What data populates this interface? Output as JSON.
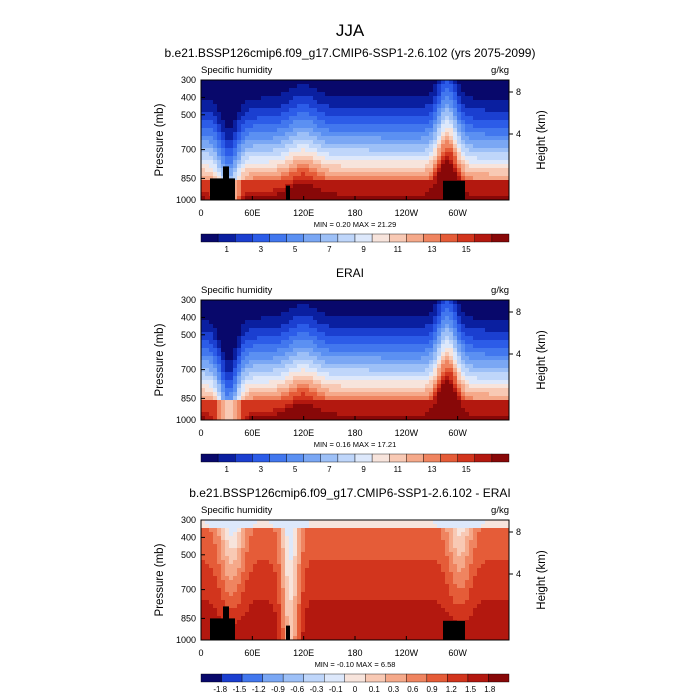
{
  "figure": {
    "title": "JJA"
  },
  "colors": {
    "levels_main": [
      "#08086b",
      "#0a1fa0",
      "#1b3fd0",
      "#2c5ce8",
      "#4277ee",
      "#5b90f2",
      "#7aa7f4",
      "#9dc0f7",
      "#bfd6fa",
      "#dde8fb",
      "#f7e4dc",
      "#f8c9b4",
      "#f5a98a",
      "#ef8460",
      "#e55c38",
      "#d2351d",
      "#b3180f",
      "#880808"
    ],
    "levels_diff": [
      "#08086b",
      "#1b3fd0",
      "#4277ee",
      "#7aa7f4",
      "#9dc0f7",
      "#bfd6fa",
      "#dde8fb",
      "#f7e4dc",
      "#f8c9b4",
      "#f5a98a",
      "#ef8460",
      "#e55c38",
      "#d2351d",
      "#b3180f",
      "#880808"
    ],
    "land": "#000000"
  },
  "chart_data": [
    {
      "type": "heatmap",
      "title": "b.e21.BSSP126cmip6.f09_g17.CMIP6-SSP1-2.6.102 (yrs 2075-2099)",
      "left_label": "Specific humidity",
      "right_label": "g/kg",
      "ylabel": "Pressure (mb)",
      "ylabel_right": "Height (km)",
      "x_ticks": [
        "0",
        "60E",
        "120E",
        "180",
        "120W",
        "60W"
      ],
      "y_ticks": [
        "300",
        "400",
        "500",
        "700",
        "850",
        "1000"
      ],
      "y_ticks_right": [
        "8",
        "4"
      ],
      "stats": "MIN =   0.20  MAX =  21.29",
      "colorbar_labels": [
        "1",
        "3",
        "5",
        "7",
        "9",
        "11",
        "13",
        "15"
      ],
      "min": 0.2,
      "max": 21.29
    },
    {
      "type": "heatmap",
      "title": "ERAI",
      "left_label": "Specific humidity",
      "right_label": "g/kg",
      "ylabel": "Pressure (mb)",
      "ylabel_right": "Height (km)",
      "x_ticks": [
        "0",
        "60E",
        "120E",
        "180",
        "120W",
        "60W"
      ],
      "y_ticks": [
        "300",
        "400",
        "500",
        "700",
        "850",
        "1000"
      ],
      "y_ticks_right": [
        "8",
        "4"
      ],
      "stats": "MIN =   0.16  MAX =  17.21",
      "colorbar_labels": [
        "1",
        "3",
        "5",
        "7",
        "9",
        "11",
        "13",
        "15"
      ],
      "min": 0.16,
      "max": 17.21
    },
    {
      "type": "heatmap",
      "title": "b.e21.BSSP126cmip6.f09_g17.CMIP6-SSP1-2.6.102 - ERAI",
      "left_label": "Specific humidity",
      "right_label": "g/kg",
      "ylabel": "Pressure (mb)",
      "ylabel_right": "Height (km)",
      "x_ticks": [
        "0",
        "60E",
        "120E",
        "180",
        "120W",
        "60W"
      ],
      "y_ticks": [
        "300",
        "400",
        "500",
        "700",
        "850",
        "1000"
      ],
      "y_ticks_right": [
        "8",
        "4"
      ],
      "stats": "MIN =  -0.10  MAX =   6.58",
      "colorbar_labels": [
        "-1.8",
        "-1.5",
        "-1.2",
        "-0.9",
        "-0.6",
        "-0.3",
        "-0.1",
        "0",
        "0.1",
        "0.3",
        "0.6",
        "0.9",
        "1.2",
        "1.5",
        "1.8"
      ],
      "min": -0.1,
      "max": 6.58
    }
  ]
}
